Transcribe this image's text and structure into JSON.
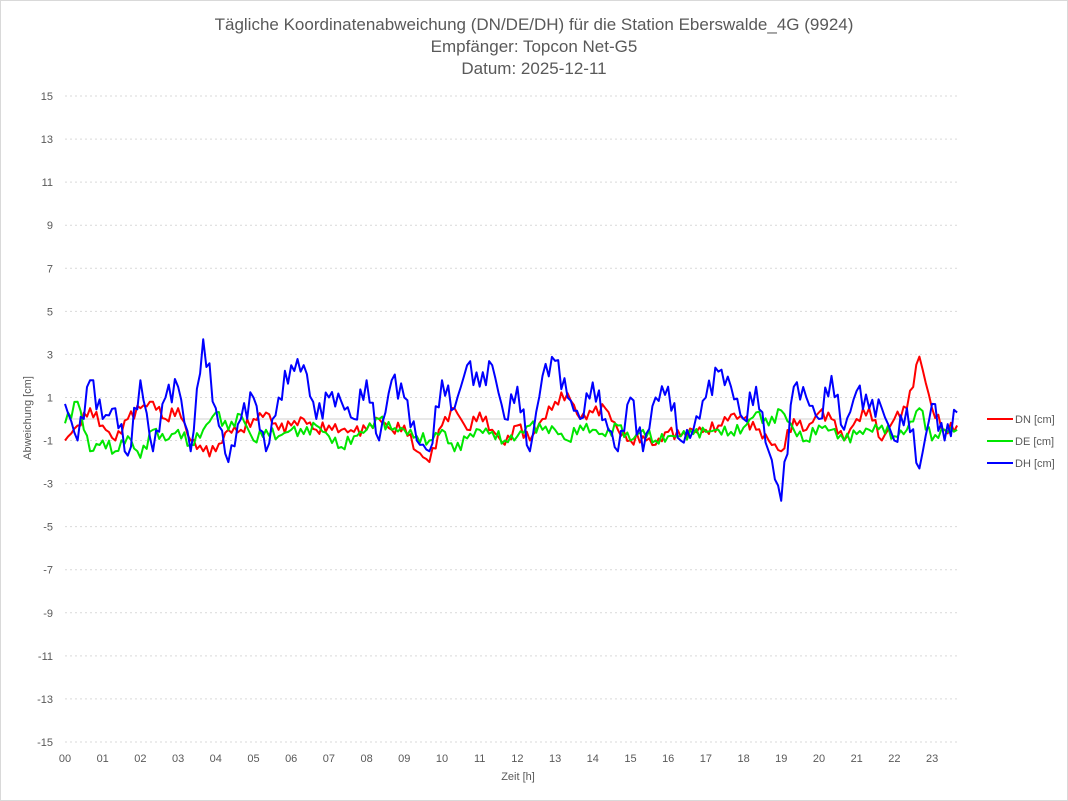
{
  "chart_data": {
    "type": "line",
    "title": [
      "Tägliche Koordinatenabweichung (DN/DE/DH) für die Station Eberswalde_4G (9924)",
      "Empfänger: Topcon Net-G5",
      "Datum: 2025-12-11"
    ],
    "xlabel": "Zeit [h]",
    "ylabel": "Abweichung [cm]",
    "xlim": [
      0,
      23.72
    ],
    "ylim": [
      -15,
      15
    ],
    "yticks": [
      "15",
      "13",
      "11",
      "9",
      "7",
      "5",
      "3",
      "1",
      "-1",
      "-3",
      "-5",
      "-7",
      "-9",
      "-11",
      "-13",
      "-15"
    ],
    "yvalues": [
      15,
      13,
      11,
      9,
      7,
      5,
      3,
      1,
      -1,
      -3,
      -5,
      -7,
      -9,
      -11,
      -13,
      -15
    ],
    "xticks": [
      "00",
      "01",
      "02",
      "03",
      "04",
      "05",
      "06",
      "07",
      "08",
      "09",
      "10",
      "11",
      "12",
      "13",
      "14",
      "15",
      "16",
      "17",
      "18",
      "19",
      "20",
      "21",
      "22",
      "23"
    ],
    "grid": true,
    "legend_position": "right",
    "x_step_hours": 0.3333,
    "series": [
      {
        "name": "DN [cm]",
        "color": "#ff0000",
        "values": [
          -1,
          -0.3,
          0.5,
          -0.3,
          -1,
          0,
          0.5,
          0.8,
          0,
          0.5,
          -1,
          -1.5,
          -1.5,
          -0.5,
          -0.5,
          0,
          0.3,
          -0.5,
          -0.3,
          0,
          -0.5,
          -0.3,
          -0.5,
          -0.6,
          -0.5,
          0,
          -0.5,
          -0.3,
          -1.5,
          -2,
          -0.3,
          0.5,
          -0.5,
          0.3,
          -0.5,
          -1.2,
          -0.3,
          -1,
          0,
          0.8,
          1.2,
          0,
          0.3,
          0.5,
          -0.5,
          -1,
          -0.8,
          -1.2,
          -0.6,
          -0.8,
          -0.5,
          -0.5,
          -0.3,
          0.2,
          0,
          -0.5,
          -1,
          -1.5,
          0,
          -0.5,
          0.3,
          0,
          -1,
          0,
          0.5,
          -1,
          0,
          0.5,
          2.9,
          0.5,
          -0.5,
          -0.3
        ]
      },
      {
        "name": "DE [cm]",
        "color": "#00e600",
        "values": [
          -0.2,
          0.8,
          -1.5,
          -1,
          -1.5,
          -0.8,
          -1.8,
          -0.5,
          -1,
          -0.5,
          -1.2,
          -0.5,
          0.3,
          -0.5,
          0.2,
          -1,
          -0.5,
          -0.8,
          -0.5,
          -0.7,
          -0.3,
          -0.8,
          -1.3,
          -0.8,
          -0.5,
          0,
          -0.5,
          -0.5,
          -0.8,
          -1,
          -0.5,
          -1.5,
          -0.9,
          -0.5,
          -0.6,
          -1,
          -0.8,
          -0.3,
          -0.5,
          -0.5,
          -1,
          -0.3,
          -0.5,
          -0.8,
          -0.3,
          -1,
          -0.5,
          -1,
          -0.8,
          -0.8,
          -0.7,
          -0.6,
          -0.5,
          -0.6,
          -0.4,
          0.3,
          -0.3,
          0.4,
          -0.5,
          -1,
          -0.3,
          -0.5,
          -1,
          -0.7,
          -0.5,
          -0.3,
          -0.8,
          -0.5,
          0.5,
          -1,
          -0.5,
          -0.5
        ]
      },
      {
        "name": "DH [cm]",
        "color": "#0000ff",
        "values": [
          0.7,
          -1,
          1.8,
          0,
          0.5,
          -1.7,
          1.8,
          -1.5,
          1,
          1.5,
          -1.5,
          3.7,
          0.5,
          -2,
          0,
          1,
          -1.5,
          1,
          2.5,
          2.5,
          0,
          1,
          0.8,
          0,
          1.8,
          -1,
          1.8,
          1,
          -1,
          -1.5,
          1.8,
          0.5,
          2.5,
          1.5,
          2.5,
          0,
          1.5,
          -1.5,
          2,
          2.7,
          1,
          0,
          1.7,
          0,
          -1.5,
          1,
          -1.5,
          1,
          1.5,
          -1,
          -0.5,
          1,
          2.2,
          1.5,
          0,
          1.5,
          -1.5,
          -3.8,
          1.5,
          1,
          0,
          2,
          -0.5,
          1.3,
          0.5,
          0.5,
          -1,
          0.5,
          -2.3,
          0.7,
          -1,
          0.3
        ]
      }
    ]
  }
}
